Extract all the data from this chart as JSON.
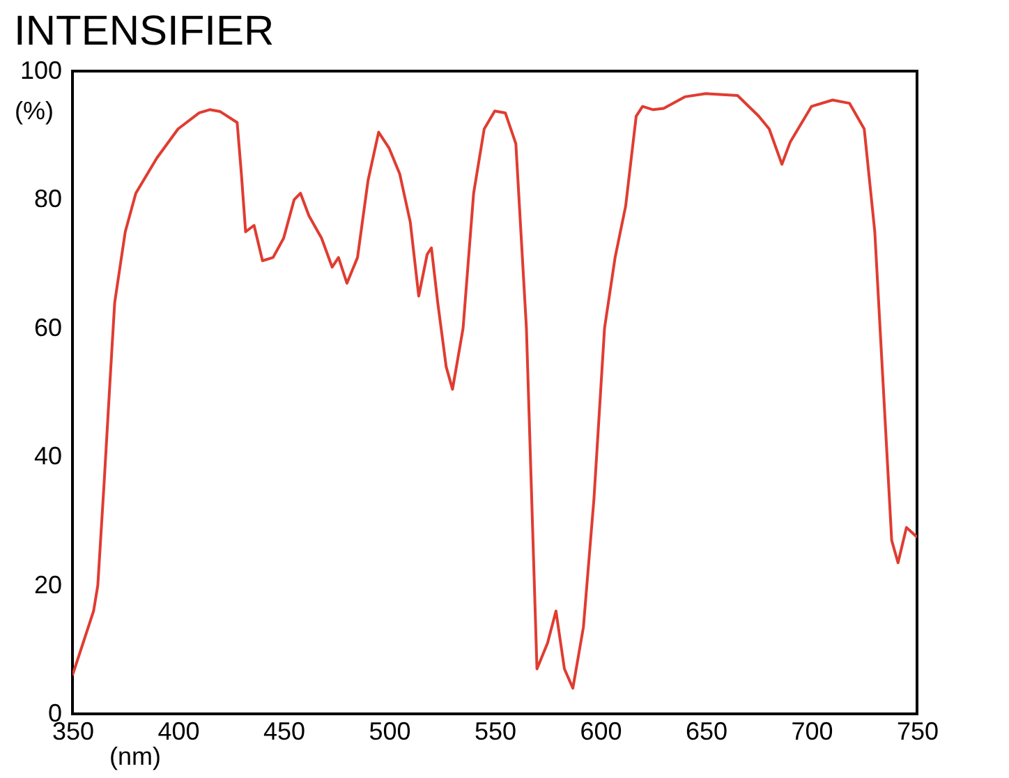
{
  "chart_data": {
    "type": "line",
    "title": "INTENSIFIER",
    "xlabel": "(nm)",
    "ylabel": "(%)",
    "x": [
      350,
      355,
      360,
      362,
      365,
      368,
      370,
      375,
      380,
      390,
      400,
      410,
      415,
      420,
      428,
      430,
      432,
      436,
      440,
      445,
      450,
      455,
      458,
      462,
      468,
      473,
      476,
      480,
      485,
      490,
      495,
      500,
      505,
      510,
      514,
      518,
      520,
      523,
      527,
      530,
      535,
      540,
      545,
      550,
      555,
      560,
      565,
      570,
      575,
      579,
      583,
      587,
      592,
      597,
      602,
      607,
      612,
      617,
      620,
      625,
      630,
      640,
      650,
      665,
      675,
      680,
      686,
      690,
      700,
      710,
      718,
      725,
      730,
      734,
      738,
      741,
      745,
      750
    ],
    "series": [
      {
        "color": "#e03c31",
        "values": [
          6,
          11,
          16,
          20,
          36,
          53,
          64,
          75,
          81,
          86.5,
          91,
          93.5,
          94,
          93.7,
          92,
          84,
          75,
          76,
          70.5,
          71,
          74,
          80,
          81,
          77.5,
          74,
          69.5,
          71,
          67,
          71,
          83,
          90.5,
          88,
          84,
          76.5,
          65,
          71.5,
          72.5,
          64,
          54,
          50.5,
          60,
          81,
          91,
          93.8,
          93.5,
          88.7,
          60,
          7,
          11,
          16,
          7,
          4,
          13.5,
          33.5,
          60,
          71,
          79,
          93,
          94.5,
          94,
          94.2,
          96,
          96.5,
          96.2,
          93,
          91,
          85.5,
          89,
          94.5,
          95.5,
          95,
          91,
          75,
          51,
          27,
          23.5,
          29,
          27.5
        ]
      }
    ],
    "xlim": [
      350,
      750
    ],
    "xticks": [
      350,
      400,
      450,
      500,
      550,
      600,
      650,
      700,
      750
    ],
    "ylim": [
      0,
      100
    ],
    "yticks": [
      0,
      20,
      40,
      60,
      80,
      100
    ],
    "grid": false,
    "legend": false,
    "marker": "none",
    "line_style": "solid"
  }
}
